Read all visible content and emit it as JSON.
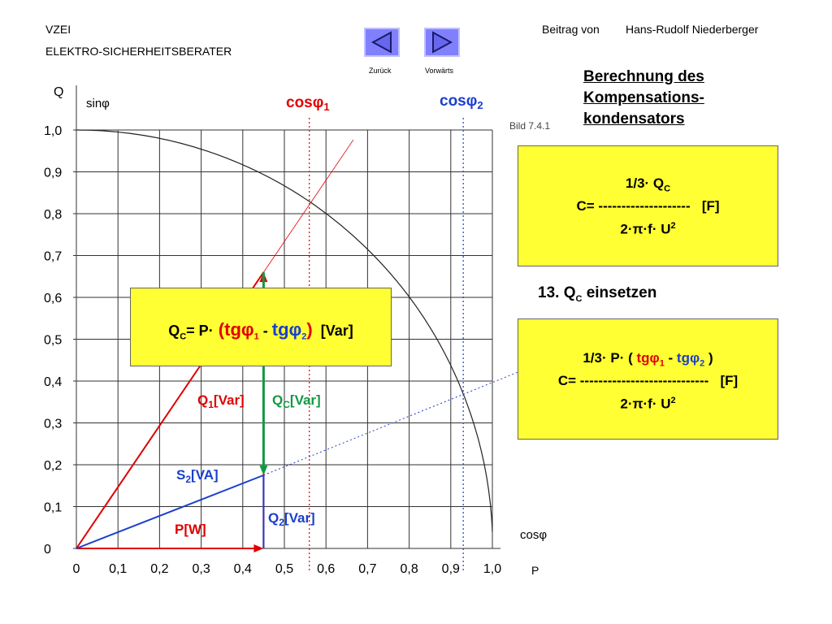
{
  "header": {
    "org": "VZEI",
    "org_sub": "ELEKTRO-SICHERHEITSBERATER",
    "credit_prefix": "Beitrag von",
    "author": "Hans-Rudolf Niederberger"
  },
  "nav": {
    "back_label": "Zurück",
    "forward_label": "Vorwärts"
  },
  "title": {
    "line1": "Berechnung des",
    "line2": "Kompensations-",
    "line3": "kondensators"
  },
  "figure_ref": "Bild 7.4.1",
  "colors": {
    "box_fill": "#ffff33",
    "red": "#e00000",
    "green": "#119944",
    "blue": "#1a3fcc"
  },
  "formula_top": {
    "num": "1/3· Q",
    "num_sub": "C",
    "lhs": "C=",
    "dashes": "--------------------",
    "unit": "[F]",
    "den": "2·π·f· U",
    "den_sup": "2"
  },
  "step_label": {
    "text": "13. Q",
    "sub": "C",
    "tail": " einsetzen"
  },
  "formula_bottom": {
    "num_a": "1/3· P· (",
    "tg1": " tgφ",
    "tg1_sub": "1",
    "minus": " - ",
    "tg2": " tgφ",
    "tg2_sub": "2",
    "close": " )",
    "lhs": "C=",
    "dashes": "----------------------------",
    "unit": "[F]",
    "den": "2·π·f· U",
    "den_sup": "2"
  },
  "formula_qc": {
    "lhs": "Q",
    "lhs_sub": "C",
    "eq": "= P·",
    "open": " (",
    "tg1": "tgφ",
    "tg1_sub": "1",
    "minus": " - ",
    "tg2": "tgφ",
    "tg2_sub": "2",
    "close": ")",
    "unit": "[Var]"
  },
  "chart_data": {
    "type": "diagram",
    "y_axis_label": "Q",
    "y_axis_sublabel": "sinφ",
    "x_axis_label": "P",
    "x_axis_sublabel": "cosφ",
    "x_ticks": [
      "0",
      "0,1",
      "0,2",
      "0,3",
      "0,4",
      "0,5",
      "0,6",
      "0,7",
      "0,8",
      "0,9",
      "1,0"
    ],
    "y_ticks": [
      "0",
      "0,1",
      "0,2",
      "0,3",
      "0,4",
      "0,5",
      "0,6",
      "0,7",
      "0,8",
      "0,9",
      "1,0"
    ],
    "xlim": [
      0,
      1
    ],
    "ylim": [
      0,
      1
    ],
    "cos_phi1": 0.56,
    "cos_phi2": 0.93,
    "p_value": 0.45,
    "q1_value": 0.66,
    "q2_value": 0.175,
    "labels": {
      "cos1": "cosφ",
      "cos1_sub": "1",
      "cos2": "cosφ",
      "cos2_sub": "2",
      "q1": "Q",
      "q1_sub": "1",
      "q1_unit": "[Var]",
      "qc": "Q",
      "qc_sub": "C",
      "qc_unit": "[Var]",
      "s2": "S",
      "s2_sub": "2",
      "s2_unit": "[VA]",
      "q2": "Q",
      "q2_sub": "2",
      "q2_unit": "[Var]",
      "p": "P[W]"
    }
  }
}
